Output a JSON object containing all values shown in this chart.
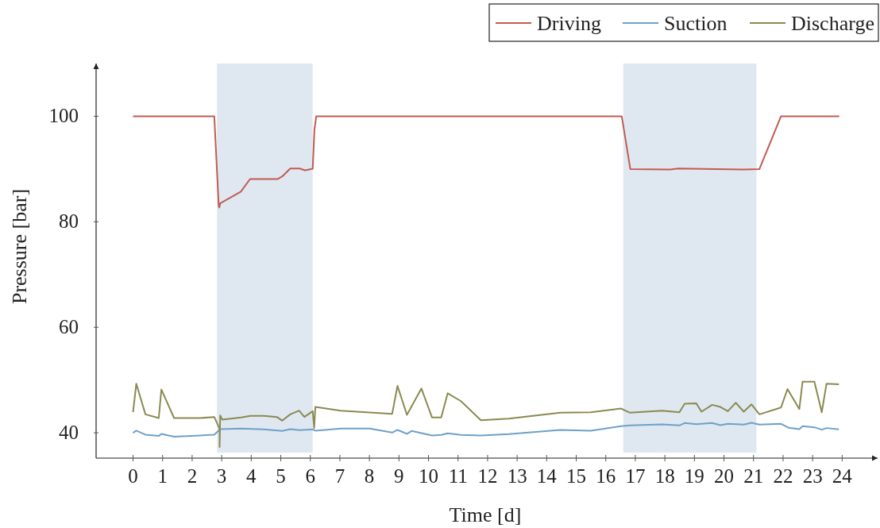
{
  "chart_data": {
    "type": "line",
    "xlabel": "Time [d]",
    "ylabel": "Pressure [bar]",
    "xlim": [
      -1.25,
      25.2
    ],
    "ylim": [
      35.2,
      110
    ],
    "xticks": [
      0,
      1,
      2,
      3,
      4,
      5,
      6,
      7,
      8,
      9,
      10,
      11,
      12,
      13,
      14,
      15,
      16,
      17,
      18,
      19,
      20,
      21,
      22,
      23,
      24
    ],
    "yticks": [
      40,
      60,
      80,
      100
    ],
    "grid": false,
    "legend": "top right",
    "marker": "none",
    "line_style": "solid",
    "bands": [
      {
        "axis": "x",
        "from": 2.84,
        "to": 6.08,
        "color": "#dfe8f1"
      },
      {
        "axis": "x",
        "from": 16.59,
        "to": 21.1,
        "color": "#dfe8f1"
      }
    ],
    "series": [
      {
        "name": "Driving",
        "color": "#c25b50",
        "x": [
          0,
          2.75,
          2.9,
          2.92,
          2.95,
          3.65,
          3.96,
          4.89,
          5.05,
          5.32,
          5.64,
          5.82,
          6.08,
          6.14,
          6.2,
          16.54,
          16.83,
          18.18,
          18.45,
          20.65,
          21.2,
          21.93,
          23.9
        ],
        "values": [
          100,
          100,
          83,
          82.7,
          83.5,
          85.7,
          88.1,
          88.1,
          88.6,
          90.1,
          90.1,
          89.75,
          90.05,
          97.5,
          100,
          100,
          90,
          89.9,
          90.1,
          89.9,
          90,
          100,
          100
        ]
      },
      {
        "name": "Suction",
        "color": "#6fa0c8",
        "x": [
          0,
          0.11,
          0.42,
          0.87,
          0.96,
          1.39,
          2.28,
          2.75,
          2.95,
          3.66,
          4.43,
          5.05,
          5.32,
          5.64,
          6.08,
          6.17,
          7.03,
          8.01,
          8.77,
          8.95,
          9.27,
          9.43,
          10.12,
          10.43,
          10.65,
          11.1,
          11.77,
          12.72,
          14.46,
          15.49,
          16.52,
          16.82,
          17.91,
          18.49,
          18.67,
          19.06,
          19.6,
          19.88,
          20.13,
          20.67,
          20.93,
          21.2,
          21.93,
          22.2,
          22.55,
          22.66,
          23.06,
          23.31,
          23.47,
          23.89
        ],
        "values": [
          40,
          40.4,
          39.65,
          39.4,
          39.8,
          39.25,
          39.5,
          39.65,
          40.7,
          40.8,
          40.65,
          40.35,
          40.7,
          40.5,
          40.65,
          40.4,
          40.8,
          40.8,
          40.05,
          40.55,
          39.8,
          40.35,
          39.5,
          39.6,
          39.9,
          39.6,
          39.5,
          39.75,
          40.55,
          40.4,
          41.25,
          41.4,
          41.6,
          41.4,
          41.85,
          41.65,
          41.85,
          41.45,
          41.7,
          41.55,
          41.9,
          41.55,
          41.7,
          40.95,
          40.7,
          41.25,
          41.05,
          40.6,
          40.9,
          40.65
        ]
      },
      {
        "name": "Discharge",
        "color": "#8a8a52",
        "x": [
          0,
          0.11,
          0.42,
          0.87,
          0.96,
          1.39,
          2.28,
          2.75,
          2.93,
          2.93,
          2.95,
          3.02,
          3.66,
          3.98,
          4.43,
          4.87,
          5.05,
          5.32,
          5.62,
          5.8,
          6.08,
          6.13,
          6.17,
          7.03,
          8.77,
          8.95,
          9.27,
          9.76,
          10.12,
          10.43,
          10.65,
          11.1,
          11.77,
          12.72,
          14.46,
          15.49,
          16.52,
          16.82,
          17.91,
          18.49,
          18.67,
          19.06,
          19.24,
          19.6,
          19.88,
          20.13,
          20.4,
          20.67,
          20.93,
          21.2,
          21.93,
          22.15,
          22.55,
          22.66,
          23.06,
          23.31,
          23.47,
          23.89
        ],
        "values": [
          43.9,
          49.3,
          43.5,
          42.8,
          48.2,
          42.8,
          42.8,
          43,
          40.75,
          37.3,
          43.3,
          42.5,
          42.9,
          43.2,
          43.2,
          43,
          42.3,
          43.5,
          44.2,
          43,
          44.1,
          40.9,
          44.9,
          44.2,
          43.6,
          48.9,
          43.4,
          48.4,
          42.9,
          42.9,
          47.5,
          46,
          42.4,
          42.7,
          43.8,
          43.9,
          44.6,
          43.8,
          44.2,
          43.9,
          45.5,
          45.6,
          44,
          45.3,
          44.9,
          44.1,
          45.7,
          44,
          45.4,
          43.5,
          44.8,
          48.3,
          44.5,
          49.7,
          49.7,
          43.9,
          49.3,
          49.2
        ]
      }
    ]
  }
}
